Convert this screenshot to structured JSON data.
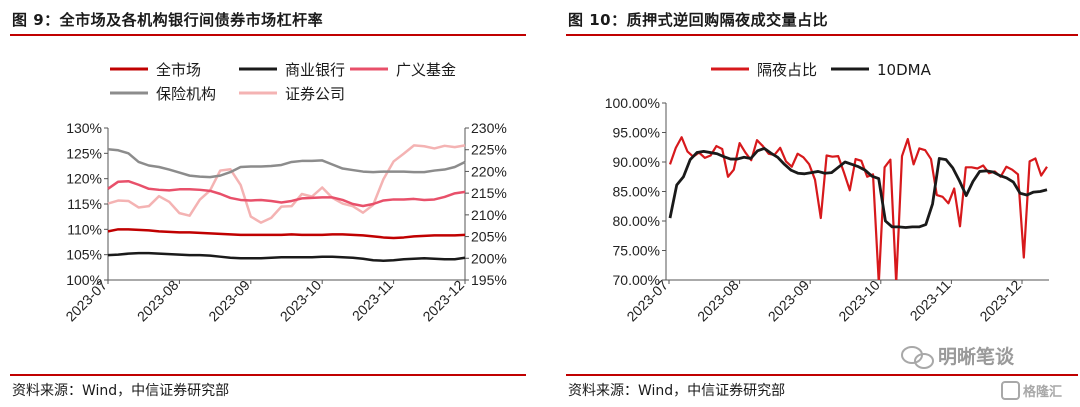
{
  "left": {
    "title": "图 9：全市场及各机构银行间债券市场杠杆率",
    "source": "资料来源：Wind，中信证券研究部"
  },
  "right": {
    "title": "图 10：质押式逆回购隔夜成交量占比",
    "source": "资料来源：Wind，中信证券研究部"
  },
  "watermark": {
    "main": "明晰笔谈",
    "corner": "格隆汇"
  },
  "colors": {
    "rule": "#c00000"
  },
  "chart_data": [
    {
      "type": "line",
      "x_labels": [
        "2023-07",
        "2023-08",
        "2023-09",
        "2023-10",
        "2023-11",
        "2023-12"
      ],
      "ylim_left": [
        100,
        130
      ],
      "ylim_right": [
        195,
        230
      ],
      "y_left_ticks": [
        "100%",
        "105%",
        "110%",
        "115%",
        "120%",
        "125%",
        "130%"
      ],
      "y_right_ticks": [
        "195%",
        "200%",
        "205%",
        "210%",
        "215%",
        "220%",
        "225%",
        "230%"
      ],
      "series": [
        {
          "name": "全市场",
          "axis": "left",
          "color": "#c00000",
          "values": [
            109.6,
            110.0,
            110.0,
            109.9,
            109.8,
            109.6,
            109.5,
            109.4,
            109.4,
            109.3,
            109.2,
            109.1,
            109.0,
            108.9,
            108.9,
            108.9,
            108.9,
            108.9,
            109.0,
            108.9,
            108.9,
            108.9,
            109.0,
            109.0,
            108.9,
            108.8,
            108.6,
            108.4,
            108.3,
            108.4,
            108.6,
            108.7,
            108.8,
            108.8,
            108.8,
            108.9
          ]
        },
        {
          "name": "商业银行",
          "axis": "left",
          "color": "#1a1a1a",
          "values": [
            104.9,
            105.0,
            105.2,
            105.3,
            105.3,
            105.2,
            105.1,
            105.0,
            104.9,
            104.9,
            104.8,
            104.6,
            104.4,
            104.3,
            104.3,
            104.3,
            104.4,
            104.5,
            104.5,
            104.5,
            104.5,
            104.6,
            104.6,
            104.5,
            104.4,
            104.2,
            103.9,
            103.8,
            103.9,
            104.1,
            104.2,
            104.3,
            104.2,
            104.1,
            104.1,
            104.4
          ]
        },
        {
          "name": "广义基金",
          "axis": "left",
          "color": "#e8506a",
          "values": [
            118.0,
            119.4,
            119.5,
            118.8,
            118.0,
            117.8,
            117.7,
            117.9,
            117.9,
            117.8,
            117.6,
            117.0,
            116.2,
            115.8,
            115.7,
            115.8,
            115.6,
            115.3,
            115.6,
            116.1,
            116.2,
            116.3,
            116.3,
            115.8,
            115.0,
            114.6,
            115.0,
            115.7,
            115.9,
            115.9,
            116.0,
            115.8,
            115.9,
            116.4,
            117.1,
            117.4
          ]
        },
        {
          "name": "保险机构",
          "axis": "left",
          "color": "#8c8c8c",
          "values": [
            125.8,
            125.6,
            125.0,
            123.3,
            122.6,
            122.3,
            121.8,
            121.2,
            120.6,
            120.4,
            120.3,
            120.6,
            121.3,
            122.3,
            122.4,
            122.4,
            122.5,
            122.7,
            123.3,
            123.5,
            123.5,
            123.6,
            122.8,
            122.0,
            121.7,
            121.4,
            121.3,
            121.4,
            121.4,
            121.4,
            121.3,
            121.3,
            121.6,
            121.8,
            122.3,
            123.3
          ]
        },
        {
          "name": "证券公司",
          "axis": "right",
          "color": "#f4b3b3",
          "values": [
            212.6,
            213.3,
            213.2,
            211.7,
            212.0,
            214.3,
            213.0,
            210.4,
            209.8,
            213.5,
            215.6,
            220.2,
            220.5,
            216.9,
            209.6,
            208.2,
            209.3,
            211.9,
            212.0,
            214.8,
            214.2,
            216.3,
            213.9,
            212.6,
            212.0,
            210.5,
            212.3,
            218.2,
            222.3,
            224.1,
            226.0,
            225.8,
            225.3,
            225.9,
            225.6,
            226.0
          ]
        }
      ]
    },
    {
      "type": "line",
      "x_labels": [
        "2023-07",
        "2023-08",
        "2023-09",
        "2023-10",
        "2023-11",
        "2023-12"
      ],
      "ylim": [
        70,
        100
      ],
      "y_ticks": [
        "70.00%",
        "75.00%",
        "80.00%",
        "85.00%",
        "90.00%",
        "95.00%",
        "100.00%"
      ],
      "series": [
        {
          "name": "隔夜占比",
          "color": "#d7191c",
          "values": [
            89.6,
            92.4,
            94.2,
            91.8,
            90.9,
            91.6,
            90.7,
            91.1,
            92.7,
            92.2,
            87.5,
            88.7,
            93.2,
            91.6,
            90.3,
            93.7,
            92.7,
            91.4,
            91.2,
            92.4,
            90.1,
            89.2,
            91.4,
            90.8,
            89.6,
            87.0,
            80.5,
            91.1,
            90.9,
            91.0,
            88.2,
            85.2,
            90.5,
            90.2,
            87.5,
            87.9,
            69.5,
            89.1,
            90.4,
            69.5,
            91.0,
            93.9,
            89.6,
            92.3,
            92.0,
            90.5,
            84.4,
            84.1,
            83.0,
            85.5,
            79.1,
            89.1,
            89.1,
            88.9,
            89.4,
            88.1,
            88.4,
            87.5,
            89.2,
            88.7,
            87.9,
            73.8,
            90.1,
            90.6,
            87.7,
            89.2
          ]
        },
        {
          "name": "10DMA",
          "color": "#1a1a1a",
          "values": [
            80.5,
            86.1,
            87.5,
            90.4,
            91.6,
            91.8,
            91.6,
            91.4,
            90.9,
            90.5,
            90.5,
            90.8,
            90.6,
            91.9,
            92.3,
            91.5,
            90.8,
            89.6,
            88.6,
            88.1,
            88.0,
            88.2,
            88.4,
            88.1,
            88.2,
            89.1,
            90.0,
            89.6,
            89.2,
            88.6,
            87.6,
            87.2,
            80.0,
            79.0,
            79.0,
            78.9,
            79.0,
            79.0,
            79.4,
            82.9,
            90.6,
            90.4,
            89.0,
            86.8,
            84.3,
            86.7,
            88.4,
            88.5,
            88.3,
            87.7,
            87.3,
            86.6,
            84.7,
            84.4,
            84.9,
            85.0,
            85.3
          ]
        }
      ]
    }
  ]
}
